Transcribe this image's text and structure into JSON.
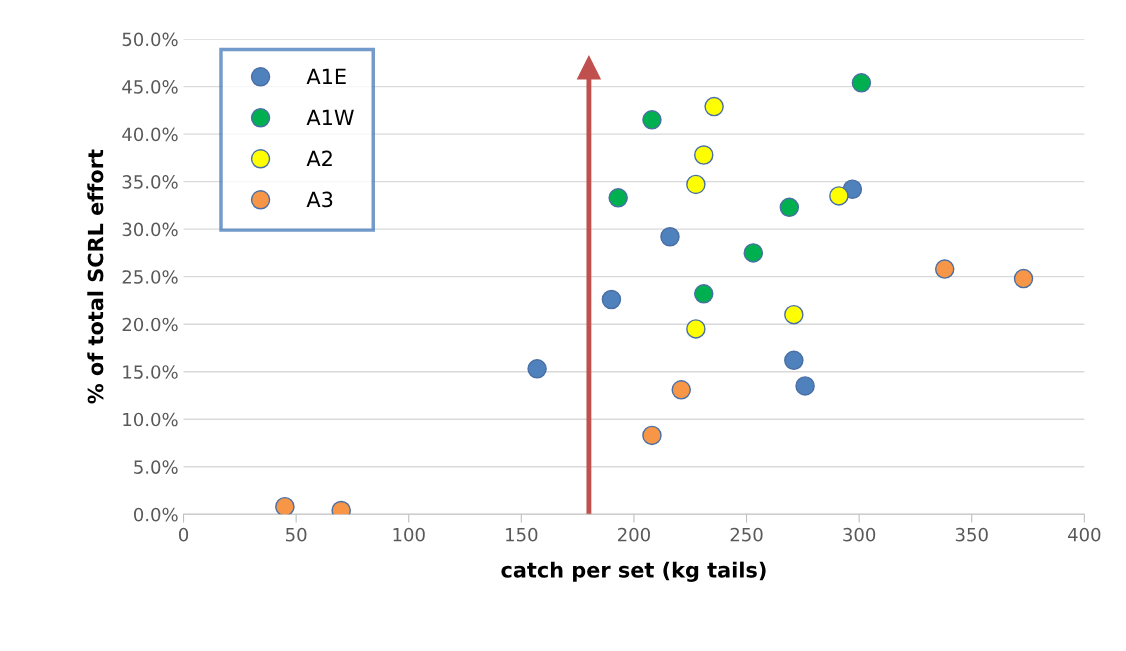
{
  "chart_data": {
    "type": "scatter",
    "xlabel": "catch per set (kg tails)",
    "ylabel": "% of total SCRL effort",
    "xlim": [
      0,
      400
    ],
    "xticks": [
      0,
      50,
      100,
      150,
      200,
      250,
      300,
      350,
      400
    ],
    "ylim": [
      0,
      50
    ],
    "yticks": [
      {
        "value": 0,
        "label": "0.0%"
      },
      {
        "value": 5,
        "label": "5.0%"
      },
      {
        "value": 10,
        "label": "10.0%"
      },
      {
        "value": 15,
        "label": "15.0%"
      },
      {
        "value": 20,
        "label": "20.0%"
      },
      {
        "value": 25,
        "label": "25.0%"
      },
      {
        "value": 30,
        "label": "30.0%"
      },
      {
        "value": 35,
        "label": "35.0%"
      },
      {
        "value": 40,
        "label": "40.0%"
      },
      {
        "value": 45,
        "label": "45.0%"
      },
      {
        "value": 50,
        "label": "50.0%"
      }
    ],
    "grid": "y",
    "legend": "top left",
    "marker": "circle",
    "series": [
      {
        "name": "A1E",
        "color": "#4f81bd",
        "x": [
          157,
          190,
          216,
          271,
          276,
          297
        ],
        "values": [
          15.3,
          22.6,
          29.2,
          16.2,
          13.5,
          34.2
        ]
      },
      {
        "name": "A1W",
        "color": "#00b050",
        "x": [
          193,
          208,
          231,
          253,
          269,
          301
        ],
        "values": [
          33.3,
          41.5,
          23.2,
          27.5,
          32.3,
          45.4
        ]
      },
      {
        "name": "A2",
        "color": "#ffff00",
        "x": [
          227.5,
          227.5,
          231,
          235.6,
          271,
          291
        ],
        "values": [
          34.7,
          19.5,
          37.8,
          42.9,
          21.0,
          33.5
        ]
      },
      {
        "name": "A3",
        "color": "#f79646",
        "x": [
          45,
          70,
          208,
          221,
          338,
          373
        ],
        "values": [
          0.8,
          0.4,
          8.3,
          13.1,
          25.8,
          24.8
        ]
      }
    ],
    "ref_lines": [
      {
        "axis": "x",
        "value": 180,
        "color": "#c0504d"
      }
    ]
  }
}
